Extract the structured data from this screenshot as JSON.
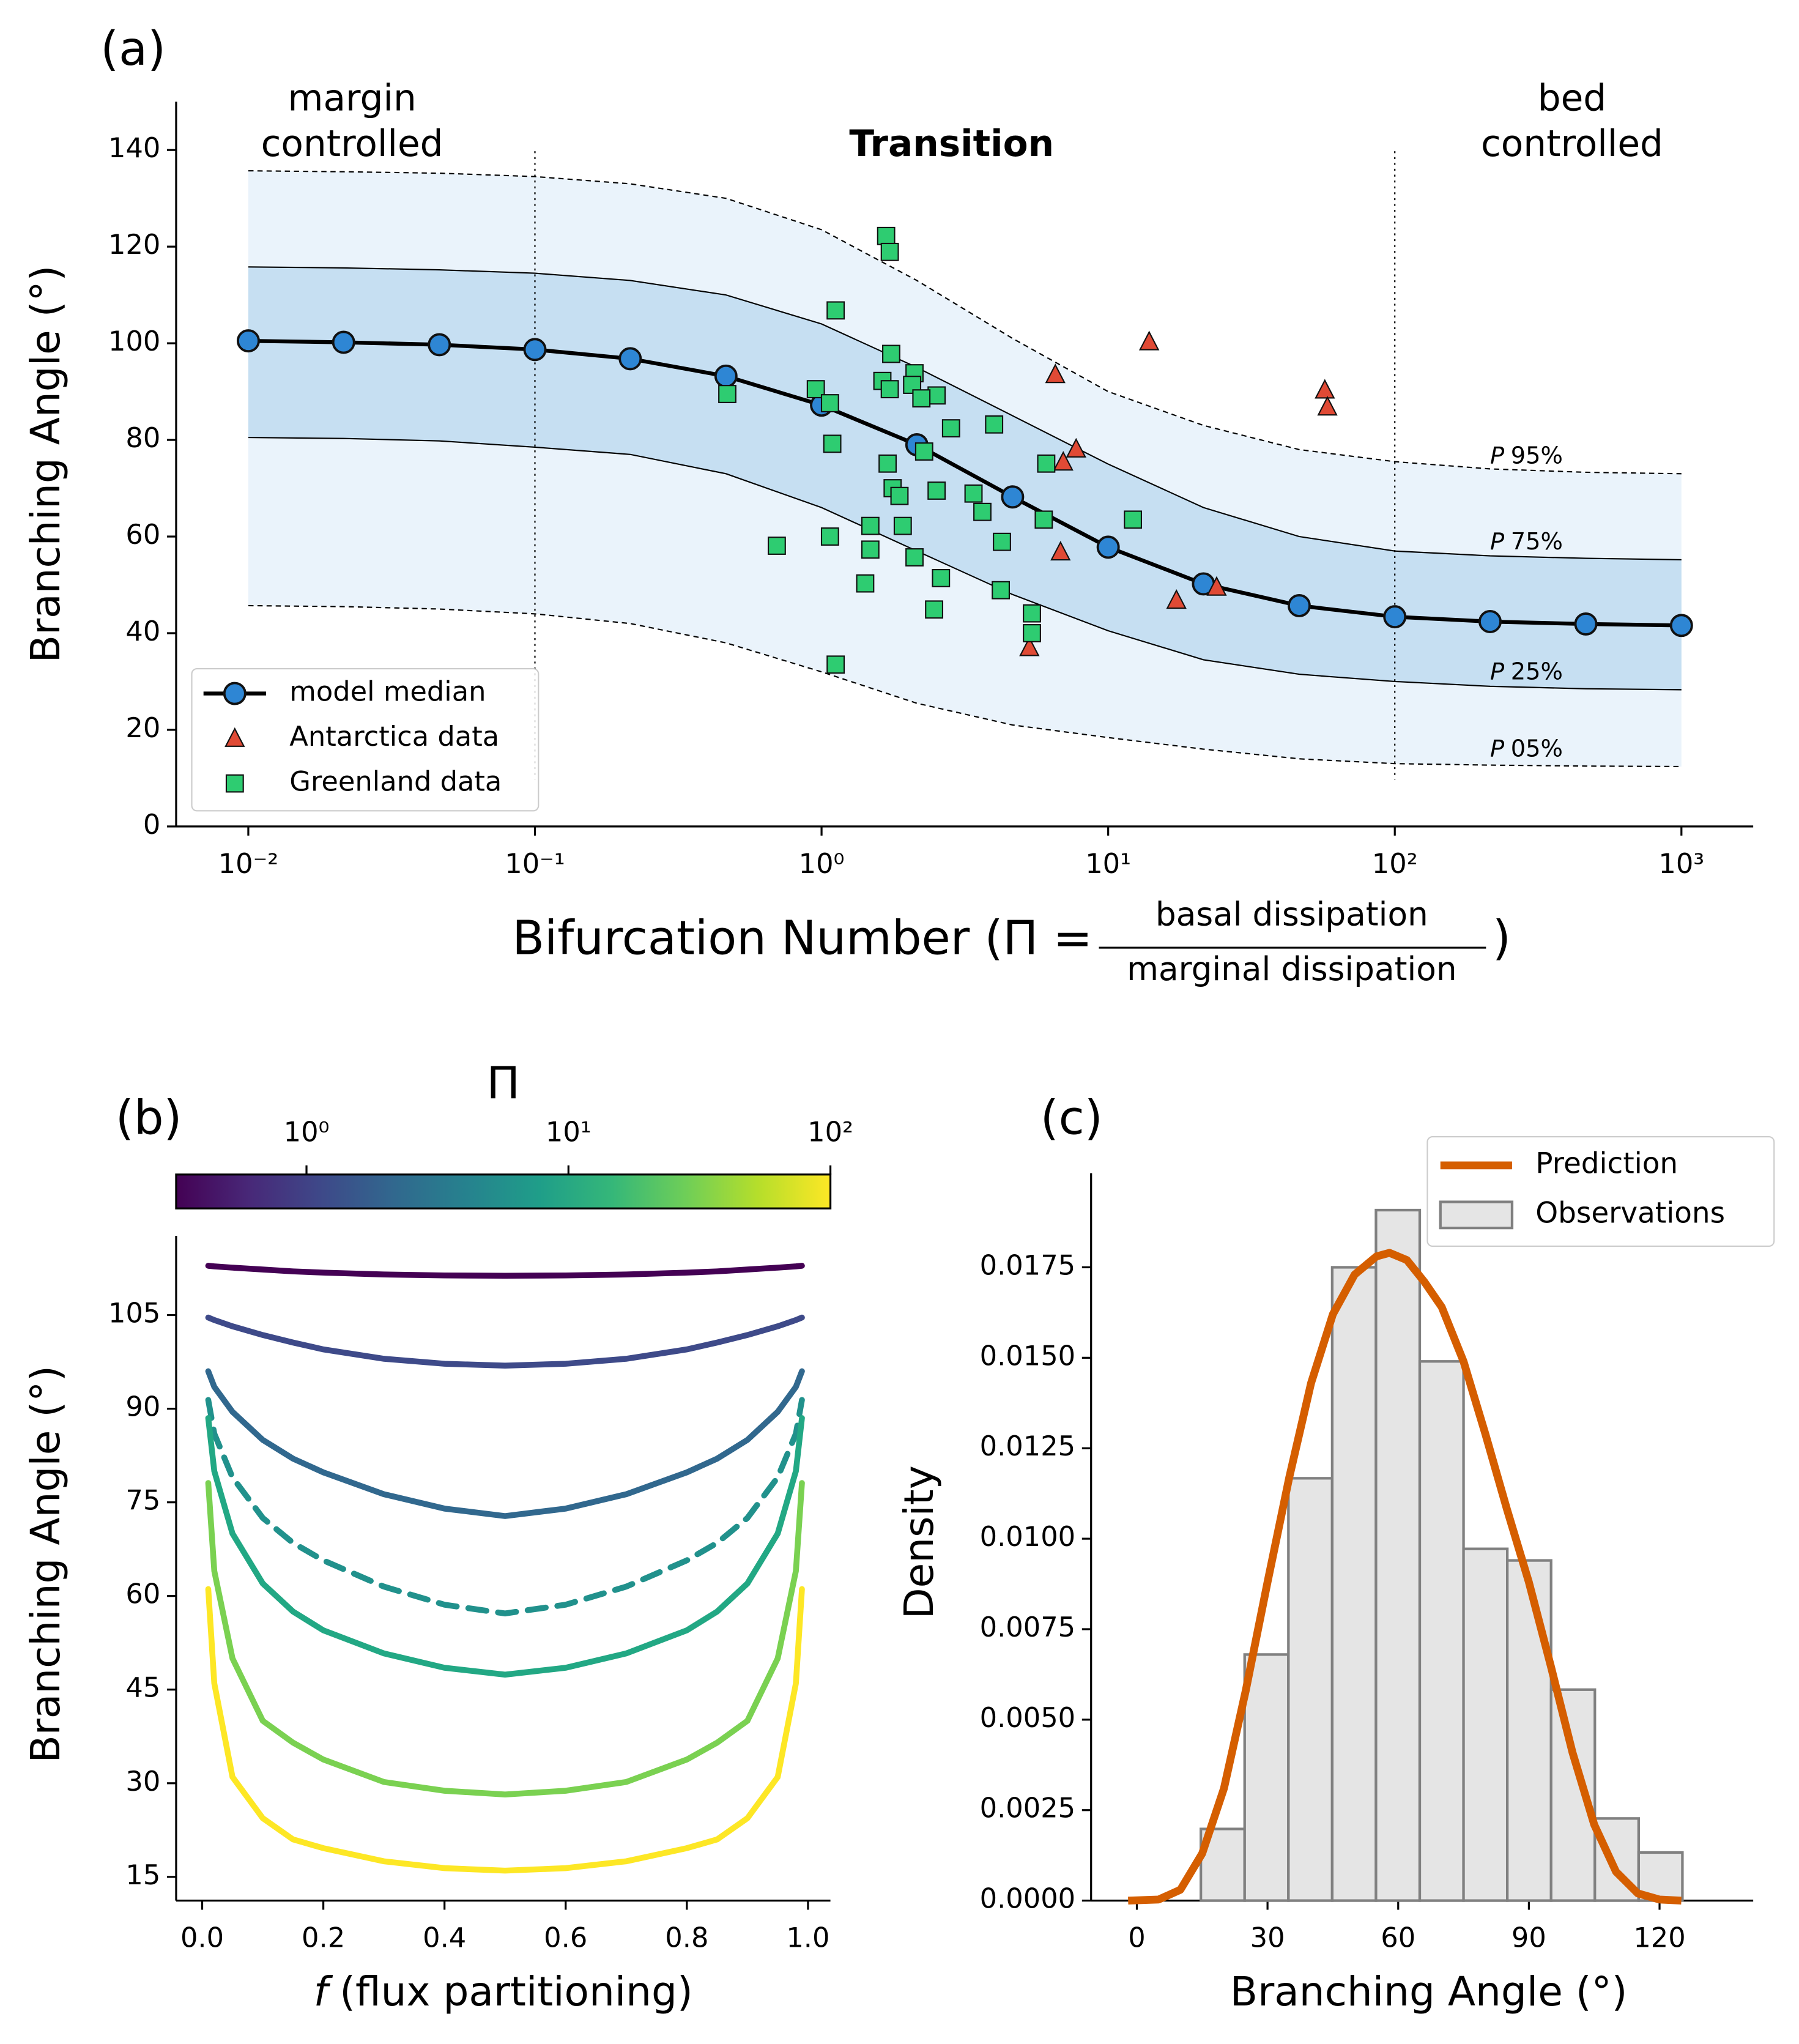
{
  "chart_data": [
    {
      "type": "line",
      "panel_label": "(a)",
      "ylabel": "Branching Angle (°)",
      "xlabel": {
        "prefix": "Bifurcation Number (Π =",
        "numerator": "basal dissipation",
        "denominator": "marginal dissipation",
        "suffix": ")"
      },
      "log_x": true,
      "xlim": [
        0.0056,
        1780
      ],
      "ylim": [
        0,
        150
      ],
      "xticks": [
        {
          "value": 0.01,
          "label": "10⁻²"
        },
        {
          "value": 0.1,
          "label": "10⁻¹"
        },
        {
          "value": 1,
          "label": "10⁰"
        },
        {
          "value": 10,
          "label": "10¹"
        },
        {
          "value": 100,
          "label": "10²"
        },
        {
          "value": 1000,
          "label": "10³"
        }
      ],
      "yticks": [
        0,
        20,
        40,
        60,
        80,
        100,
        120,
        140
      ],
      "x": [
        0.01,
        0.0215,
        0.0464,
        0.1,
        0.215,
        0.464,
        1,
        2.15,
        4.64,
        10,
        21.5,
        46.4,
        100,
        215,
        464,
        1000
      ],
      "band_colors": {
        "outer": "#eaf3fb",
        "inner": "#c6dff2"
      },
      "percentiles": [
        {
          "symbol": "P",
          "label": "95%",
          "linestyle": "dashed",
          "values": [
            135.7,
            135.5,
            135.2,
            134.5,
            133,
            130,
            123.5,
            113,
            101,
            90,
            83,
            78,
            75.5,
            74,
            73.3,
            73
          ]
        },
        {
          "symbol": "P",
          "label": "75%",
          "linestyle": "solid",
          "values": [
            115.8,
            115.6,
            115.2,
            114.5,
            113,
            110,
            104,
            95,
            85,
            75,
            66,
            60,
            57,
            56,
            55.5,
            55.2
          ]
        },
        {
          "symbol": "P",
          "label": "25%",
          "linestyle": "solid",
          "values": [
            80.5,
            80.3,
            79.8,
            78.5,
            77,
            73,
            66,
            57,
            48,
            40.5,
            34.5,
            31.5,
            30,
            29,
            28.5,
            28.3
          ]
        },
        {
          "symbol": "P",
          "label": "05%",
          "linestyle": "dashed",
          "values": [
            45.7,
            45.5,
            45,
            44,
            42,
            38,
            32,
            25.5,
            21,
            18.4,
            16,
            14,
            13,
            12.7,
            12.5,
            12.4
          ]
        }
      ],
      "vlines": [
        0.1,
        100
      ],
      "regions": [
        {
          "text": [
            "margin",
            "controlled"
          ]
        },
        {
          "text": [
            "Transition"
          ],
          "bold": true
        },
        {
          "text": [
            "bed",
            "controlled"
          ]
        }
      ],
      "legend": "lower left",
      "series": [
        {
          "name": "model median",
          "marker": "o",
          "color": "#2e86d4",
          "line_color": "#000000",
          "values": [
            100.5,
            100.2,
            99.7,
            98.7,
            96.8,
            93.2,
            87.2,
            79,
            68.2,
            57.8,
            50.2,
            45.7,
            43.4,
            42.4,
            41.9,
            41.6
          ]
        },
        {
          "name": "Antarctica data",
          "marker": "^",
          "color": "#e04a35",
          "x": [
            6.54,
            13.9,
            57.0,
            58.2,
            7.73,
            6.97,
            6.82,
            23.9,
            17.3,
            5.31
          ],
          "values": [
            93.5,
            100.3,
            90.3,
            86.8,
            78.1,
            75.4,
            56.8,
            49.5,
            46.8,
            37.0
          ]
        },
        {
          "name": "Greenland data",
          "marker": "s",
          "color": "#2ecc71",
          "x": [
            1.68,
            1.73,
            1.12,
            1.75,
            1.63,
            1.73,
            2.11,
            2.07,
            2.52,
            2.23,
            0.955,
            1.07,
            0.469,
            2.83,
            1.09,
            2.28,
            1.7,
            6.08,
            4.0,
            1.77,
            1.87,
            2.52,
            3.39,
            3.64,
            0.698,
            1.07,
            1.48,
            1.92,
            4.26,
            5.96,
            12.2,
            1.48,
            2.11,
            2.61,
            1.42,
            4.22,
            2.47,
            5.42,
            5.42,
            1.12
          ],
          "values": [
            122.2,
            118.9,
            106.8,
            97.8,
            92.2,
            90.5,
            93.8,
            91.4,
            89.2,
            88.6,
            90.5,
            87.6,
            89.5,
            82.4,
            79.2,
            77.6,
            75.1,
            75.1,
            83.2,
            70.0,
            68.4,
            69.5,
            68.9,
            65.1,
            58.1,
            60.0,
            62.2,
            62.2,
            58.9,
            63.5,
            63.5,
            57.3,
            55.7,
            51.4,
            50.3,
            48.9,
            44.9,
            44.1,
            40.0,
            33.5
          ]
        }
      ]
    },
    {
      "type": "line",
      "panel_label": "(b)",
      "ylabel": "Branching Angle (°)",
      "xlabel": {
        "symbol": "f",
        "text": "(flux partitioning)"
      },
      "xlim": [
        -0.043,
        1.037
      ],
      "ylim": [
        11.2,
        117.7
      ],
      "xticks": [
        {
          "value": 0,
          "label": "0.0"
        },
        0.2,
        0.4,
        0.6,
        0.8,
        {
          "value": 1,
          "label": "1.0"
        }
      ],
      "yticks": [
        15,
        30,
        45,
        60,
        75,
        90,
        105
      ],
      "x": [
        0.01,
        0.02,
        0.05,
        0.1,
        0.15,
        0.2,
        0.3,
        0.4,
        0.5,
        0.6,
        0.7,
        0.8,
        0.85,
        0.9,
        0.95,
        0.98,
        0.99
      ],
      "colorbar": {
        "label": "Π",
        "log": true,
        "lim": [
          0.318,
          100
        ],
        "ticks": [
          {
            "value": 1,
            "label": "10⁰"
          },
          {
            "value": 10,
            "label": "10¹"
          },
          {
            "value": 100,
            "label": "10²"
          }
        ],
        "colors": [
          "#440154",
          "#482878",
          "#3e4989",
          "#31688e",
          "#26828e",
          "#1f9e89",
          "#35b779",
          "#6ece58",
          "#b5de2b",
          "#fde725"
        ]
      },
      "series": [
        {
          "color": "#440154",
          "linestyle": "solid",
          "values": [
            112.9,
            112.8,
            112.6,
            112.3,
            112.0,
            111.8,
            111.5,
            111.35,
            111.3,
            111.35,
            111.5,
            111.8,
            112.0,
            112.3,
            112.6,
            112.8,
            112.9
          ]
        },
        {
          "color": "#3e4a89",
          "linestyle": "solid",
          "values": [
            104.6,
            104.2,
            103.2,
            101.8,
            100.6,
            99.5,
            98.0,
            97.2,
            96.9,
            97.2,
            98.0,
            99.5,
            100.6,
            101.8,
            103.2,
            104.2,
            104.6
          ]
        },
        {
          "color": "#31688e",
          "linestyle": "solid",
          "values": [
            96.0,
            93.5,
            89.5,
            85,
            82,
            79.8,
            76.3,
            74.0,
            72.8,
            74.0,
            76.3,
            79.8,
            82,
            85,
            89.5,
            93.5,
            96.0
          ]
        },
        {
          "color": "#21918c",
          "linestyle": "dashed",
          "values": [
            91.4,
            86,
            79,
            72.5,
            68.5,
            65.7,
            61.5,
            58.6,
            57.2,
            58.6,
            61.5,
            65.7,
            68.5,
            72.5,
            79,
            86,
            91.4
          ]
        },
        {
          "color": "#22a884",
          "linestyle": "solid",
          "values": [
            88.5,
            80,
            70,
            62,
            57.5,
            54.5,
            50.8,
            48.5,
            47.4,
            48.5,
            50.8,
            54.5,
            57.5,
            62,
            70,
            80,
            88.5
          ]
        },
        {
          "color": "#7ad151",
          "linestyle": "solid",
          "values": [
            78.1,
            64,
            50,
            40,
            36.5,
            33.8,
            30.2,
            28.8,
            28.2,
            28.8,
            30.2,
            33.8,
            36.5,
            40,
            50,
            64,
            78.1
          ]
        },
        {
          "color": "#fde725",
          "linestyle": "solid",
          "values": [
            61.1,
            46,
            31,
            24.4,
            21,
            19.6,
            17.5,
            16.4,
            16.0,
            16.4,
            17.5,
            19.6,
            21,
            24.4,
            31,
            46,
            61.1
          ]
        }
      ]
    },
    {
      "type": "histogram",
      "panel_label": "(c)",
      "ylabel": "Density",
      "xlabel": "Branching Angle (°)",
      "xlim": [
        -10.5,
        141.5
      ],
      "ylim": [
        0,
        0.0201
      ],
      "xticks": [
        0,
        30,
        60,
        90,
        120
      ],
      "yticks": [
        {
          "value": 0,
          "label": "0.0000"
        },
        {
          "value": 0.0025,
          "label": "0.0025"
        },
        {
          "value": 0.005,
          "label": "0.0050"
        },
        {
          "value": 0.0075,
          "label": "0.0075"
        },
        {
          "value": 0.01,
          "label": "0.0100"
        },
        {
          "value": 0.0125,
          "label": "0.0125"
        },
        {
          "value": 0.015,
          "label": "0.0150"
        },
        {
          "value": 0.0175,
          "label": "0.0175"
        }
      ],
      "legend": "upper right",
      "name": "Observations",
      "color": "#e5e5e5",
      "edgecolor": "#808080",
      "bins": [
        14.7,
        24.75,
        34.8,
        44.85,
        54.9,
        64.95,
        75.0,
        85.05,
        95.1,
        105.15,
        115.2,
        125.25
      ],
      "values": [
        0.00198,
        0.0068,
        0.01167,
        0.0175,
        0.01908,
        0.0149,
        0.00972,
        0.0094,
        0.00583,
        0.00227,
        0.00133
      ],
      "line": {
        "name": "Prediction",
        "color": "#d55e00",
        "x": [
          -2,
          5,
          10,
          15,
          20,
          25,
          30,
          35,
          40,
          45,
          50,
          55,
          58,
          62,
          66,
          70,
          75,
          80,
          85,
          90,
          95,
          100,
          105,
          110,
          115,
          120,
          125
        ],
        "values": [
          0,
          3e-05,
          0.0003,
          0.0013,
          0.0031,
          0.0058,
          0.0088,
          0.0117,
          0.0143,
          0.0162,
          0.0173,
          0.0178,
          0.0179,
          0.0177,
          0.0171,
          0.0164,
          0.0149,
          0.0129,
          0.0108,
          0.0088,
          0.0065,
          0.0041,
          0.0021,
          0.0008,
          0.0002,
          3e-05,
          0
        ]
      }
    }
  ]
}
